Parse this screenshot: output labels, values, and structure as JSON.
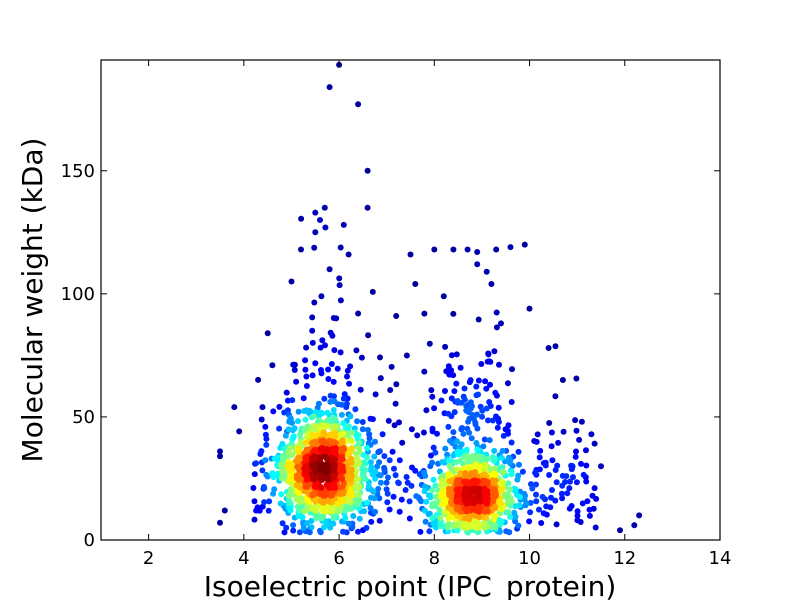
{
  "chart_data": {
    "type": "scatter",
    "title": "",
    "xlabel": "Isoelectric point (IPC_protein)",
    "ylabel": "Molecular weight (kDa)",
    "xlim": [
      1,
      14
    ],
    "ylim": [
      0,
      195
    ],
    "x_ticks": [
      2,
      4,
      6,
      8,
      10,
      12,
      14
    ],
    "y_ticks": [
      0,
      50,
      100,
      150
    ],
    "grid": false,
    "legend": "none",
    "colormap": "jet (point density)",
    "density_clusters": [
      {
        "x_center": 5.7,
        "y_center": 28,
        "spread_x": 0.45,
        "spread_y": 11,
        "count": 950
      },
      {
        "x_center": 8.8,
        "y_center": 19,
        "spread_x": 0.45,
        "spread_y": 9,
        "count": 700
      }
    ],
    "outlier_points": [
      {
        "x": 5.8,
        "y": 197
      },
      {
        "x": 6.0,
        "y": 193
      },
      {
        "x": 5.8,
        "y": 184
      },
      {
        "x": 6.4,
        "y": 177
      },
      {
        "x": 6.6,
        "y": 150
      },
      {
        "x": 6.6,
        "y": 135
      },
      {
        "x": 5.7,
        "y": 135
      },
      {
        "x": 5.5,
        "y": 133
      },
      {
        "x": 5.6,
        "y": 130
      },
      {
        "x": 5.5,
        "y": 125
      },
      {
        "x": 6.1,
        "y": 128
      },
      {
        "x": 5.2,
        "y": 118
      },
      {
        "x": 8.7,
        "y": 118
      },
      {
        "x": 8.9,
        "y": 117
      },
      {
        "x": 9.3,
        "y": 118
      },
      {
        "x": 9.6,
        "y": 119
      },
      {
        "x": 9.9,
        "y": 120
      },
      {
        "x": 8.0,
        "y": 118
      },
      {
        "x": 8.4,
        "y": 118
      },
      {
        "x": 8.9,
        "y": 112
      },
      {
        "x": 9.1,
        "y": 109
      },
      {
        "x": 7.5,
        "y": 116
      },
      {
        "x": 6.2,
        "y": 116
      },
      {
        "x": 5.8,
        "y": 110
      },
      {
        "x": 5.0,
        "y": 105
      },
      {
        "x": 7.6,
        "y": 104
      },
      {
        "x": 9.2,
        "y": 104
      },
      {
        "x": 8.2,
        "y": 99
      },
      {
        "x": 10.0,
        "y": 94
      },
      {
        "x": 6.4,
        "y": 92
      },
      {
        "x": 7.2,
        "y": 91
      },
      {
        "x": 9.4,
        "y": 88
      },
      {
        "x": 4.5,
        "y": 84
      },
      {
        "x": 4.6,
        "y": 71
      },
      {
        "x": 10.4,
        "y": 78
      },
      {
        "x": 10.7,
        "y": 65
      },
      {
        "x": 3.8,
        "y": 54
      },
      {
        "x": 3.5,
        "y": 36
      },
      {
        "x": 3.5,
        "y": 34
      },
      {
        "x": 3.6,
        "y": 12
      },
      {
        "x": 3.5,
        "y": 7
      },
      {
        "x": 12.3,
        "y": 10
      },
      {
        "x": 12.2,
        "y": 6
      },
      {
        "x": 11.9,
        "y": 4
      },
      {
        "x": 11.3,
        "y": 43
      },
      {
        "x": 11.1,
        "y": 48
      },
      {
        "x": 11.5,
        "y": 30
      }
    ]
  }
}
